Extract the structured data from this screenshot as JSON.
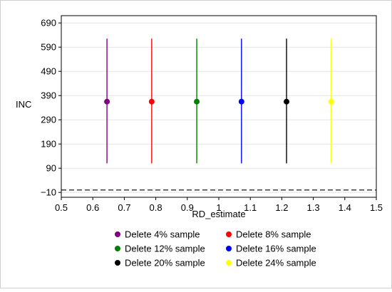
{
  "chart_data": {
    "type": "scatter",
    "title": "",
    "xlabel": "RD_estimate",
    "ylabel": "INC",
    "xlim": [
      0.5,
      1.5
    ],
    "ylim": [
      -30,
      720
    ],
    "x_ticks": [
      0.5,
      0.6,
      0.7,
      0.8,
      0.9,
      1,
      1.1,
      1.2,
      1.3,
      1.4,
      1.5
    ],
    "x_tick_labels": [
      "0.5",
      "0.6",
      "0.7",
      "0.8",
      "0.9",
      "1",
      "1.1",
      "1.2",
      "1.3",
      "1.4",
      "1.5"
    ],
    "y_ticks": [
      -10,
      90,
      190,
      290,
      390,
      490,
      590,
      690
    ],
    "y_tick_labels": [
      "−10",
      "90",
      "190",
      "290",
      "390",
      "490",
      "590",
      "690"
    ],
    "grid": "horizontal",
    "reference_line": {
      "y": 0,
      "style": "dashed",
      "color": "#000000"
    },
    "legend_placement": "bottom",
    "series": [
      {
        "name": "Delete 4% sample",
        "color": "#800080",
        "x": 0.645,
        "y": 365,
        "y_low": 110,
        "y_high": 625
      },
      {
        "name": "Delete 8% sample",
        "color": "#ff0000",
        "x": 0.787,
        "y": 365,
        "y_low": 110,
        "y_high": 625
      },
      {
        "name": "Delete 12% sample",
        "color": "#008000",
        "x": 0.93,
        "y": 365,
        "y_low": 110,
        "y_high": 625
      },
      {
        "name": "Delete 16% sample",
        "color": "#0000ff",
        "x": 1.072,
        "y": 365,
        "y_low": 110,
        "y_high": 625
      },
      {
        "name": "Delete 20% sample",
        "color": "#000000",
        "x": 1.215,
        "y": 365,
        "y_low": 110,
        "y_high": 625
      },
      {
        "name": "Delete 24% sample",
        "color": "#ffff00",
        "x": 1.357,
        "y": 365,
        "y_low": 110,
        "y_high": 625
      }
    ]
  }
}
